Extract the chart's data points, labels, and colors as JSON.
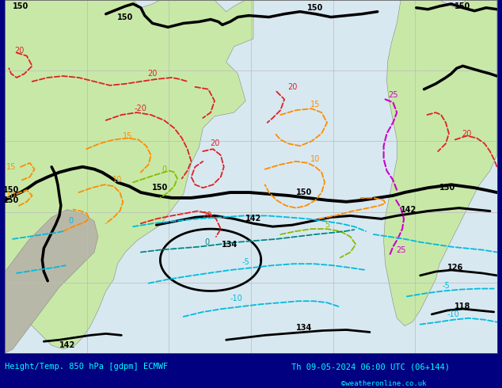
{
  "title_left": "Height/Temp. 850 hPa [gdpm] ECMWF",
  "title_right": "Th 09-05-2024 06:00 UTC (06+144)",
  "copyright": "©weatheronline.co.uk",
  "ocean_color": "#d8e8f0",
  "land_color_sa": "#c8e8a8",
  "land_color_af": "#c8e8a8",
  "land_color_gray": "#c0c0b8",
  "grid_color": "#bbbbbb",
  "fig_width": 6.34,
  "fig_height": 4.9,
  "dpi": 100,
  "footer_bg": "#000080",
  "footer_text_color": "#00ffff"
}
